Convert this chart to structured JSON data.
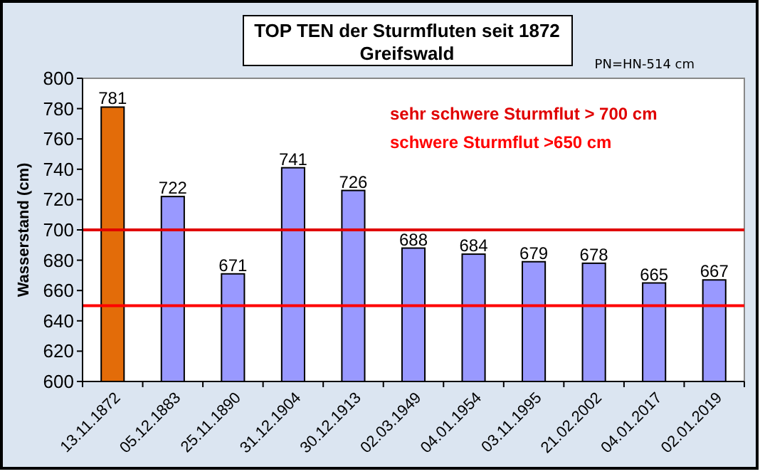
{
  "chart_data": {
    "type": "bar",
    "title": "TOP TEN der Sturmfluten seit 1872",
    "subtitle": "Greifswald",
    "ylabel": "Wasserstand  (cm)",
    "categories": [
      "13.11.1872",
      "05.12.1883",
      "25.11.1890",
      "31.12.1904",
      "30.12.1913",
      "02.03.1949",
      "04.01.1954",
      "03.11.1995",
      "21.02.2002",
      "04.01.2017",
      "02.01.2019"
    ],
    "values": [
      781,
      722,
      671,
      741,
      726,
      688,
      684,
      679,
      678,
      665,
      667
    ],
    "colors": [
      "#e36c09",
      "#9999ff",
      "#9999ff",
      "#9999ff",
      "#9999ff",
      "#9999ff",
      "#9999ff",
      "#9999ff",
      "#9999ff",
      "#9999ff",
      "#9999ff"
    ],
    "ylim": [
      600,
      800
    ],
    "yticks": [
      600,
      620,
      640,
      660,
      680,
      700,
      720,
      740,
      760,
      780,
      800
    ],
    "data_labels": true,
    "ref_lines": [
      {
        "axis": "y",
        "value": 700,
        "label": "sehr schwere Sturmflut > 700  cm",
        "color": "#e00000"
      },
      {
        "axis": "y",
        "value": 650,
        "label": "schwere Sturmflut >650  cm",
        "color": "#ff0000"
      }
    ],
    "annotations": [
      "PN=HN-514 cm"
    ]
  }
}
